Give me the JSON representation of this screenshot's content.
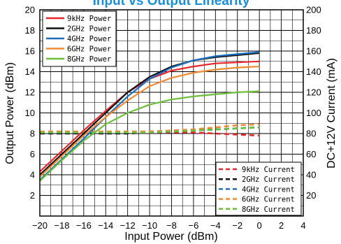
{
  "chart_data": {
    "type": "line",
    "title": "Input vs Output Linearity",
    "xlabel": "Input Power (dBm)",
    "ylabel": "Output Power (dBm)",
    "y2label": "DC+12V Current (mA)",
    "xlim": [
      -20,
      4
    ],
    "ylim": [
      0,
      20
    ],
    "y2lim": [
      0,
      200
    ],
    "x_ticks": [
      -20,
      -18,
      -16,
      -14,
      -12,
      -10,
      -8,
      -6,
      -4,
      -2,
      0,
      2,
      4
    ],
    "y_ticks": [
      2,
      4,
      6,
      8,
      10,
      12,
      14,
      16,
      18,
      20
    ],
    "y2_ticks": [
      20,
      40,
      60,
      80,
      100,
      120,
      140,
      160,
      180,
      200
    ],
    "x_tick_labels": [
      "−20",
      "−18",
      "−16",
      "−14",
      "−12",
      "−10",
      "−8",
      "−6",
      "−4",
      "−2",
      "0",
      "2",
      "4"
    ],
    "y_tick_labels": [
      "2",
      "4",
      "6",
      "8",
      "10",
      "12",
      "14",
      "16",
      "18",
      "20"
    ],
    "y2_tick_labels": [
      "20",
      "40",
      "60",
      "80",
      "100",
      "120",
      "140",
      "160",
      "180",
      "200"
    ],
    "grid": true,
    "x": [
      -20,
      -18,
      -16,
      -14,
      -12,
      -10,
      -8,
      -6,
      -4,
      -2,
      0
    ],
    "power_legend_position": "top-left",
    "current_legend_position": "bottom-right",
    "power_series": [
      {
        "name": "9kHz Power",
        "color": "#e8252a",
        "values": [
          4.3,
          6.3,
          8.3,
          10.2,
          12.0,
          13.3,
          14.1,
          14.5,
          14.8,
          14.9,
          15.0
        ]
      },
      {
        "name": "2GHz Power",
        "color": "#111111",
        "values": [
          4.0,
          6.0,
          8.0,
          10.0,
          12.0,
          13.5,
          14.5,
          15.1,
          15.4,
          15.6,
          15.8
        ]
      },
      {
        "name": "4GHz Power",
        "color": "#1a6fc0",
        "values": [
          3.5,
          5.5,
          7.5,
          9.6,
          11.6,
          13.3,
          14.4,
          15.1,
          15.5,
          15.7,
          15.9
        ]
      },
      {
        "name": "6GHz Power",
        "color": "#f28a30",
        "values": [
          3.8,
          5.8,
          7.8,
          9.6,
          11.2,
          12.6,
          13.4,
          13.9,
          14.2,
          14.4,
          14.5
        ]
      },
      {
        "name": "8GHz Power",
        "color": "#6cbf3a",
        "values": [
          3.4,
          5.4,
          7.3,
          8.9,
          10.0,
          10.8,
          11.3,
          11.6,
          11.8,
          12.0,
          12.1
        ]
      }
    ],
    "current_series": [
      {
        "name": "9kHz Current",
        "color": "#e8252a",
        "values": [
          81,
          81,
          81,
          81,
          81,
          81,
          81,
          81,
          80,
          79,
          78
        ]
      },
      {
        "name": "2GHz Current",
        "color": "#111111",
        "values": [
          80,
          80,
          80,
          80,
          80,
          81,
          82,
          83,
          84,
          85,
          86
        ]
      },
      {
        "name": "4GHz Current",
        "color": "#1a6fc0",
        "values": [
          81,
          81,
          81,
          81,
          81,
          81,
          82,
          83,
          84,
          85,
          86
        ]
      },
      {
        "name": "6GHz Current",
        "color": "#f28a30",
        "values": [
          82,
          82,
          82,
          82,
          82,
          82,
          83,
          84,
          86,
          88,
          89
        ]
      },
      {
        "name": "8GHz Current",
        "color": "#6cbf3a",
        "values": [
          81,
          81,
          81,
          81,
          81,
          81,
          82,
          83,
          84,
          85,
          86
        ]
      }
    ]
  }
}
